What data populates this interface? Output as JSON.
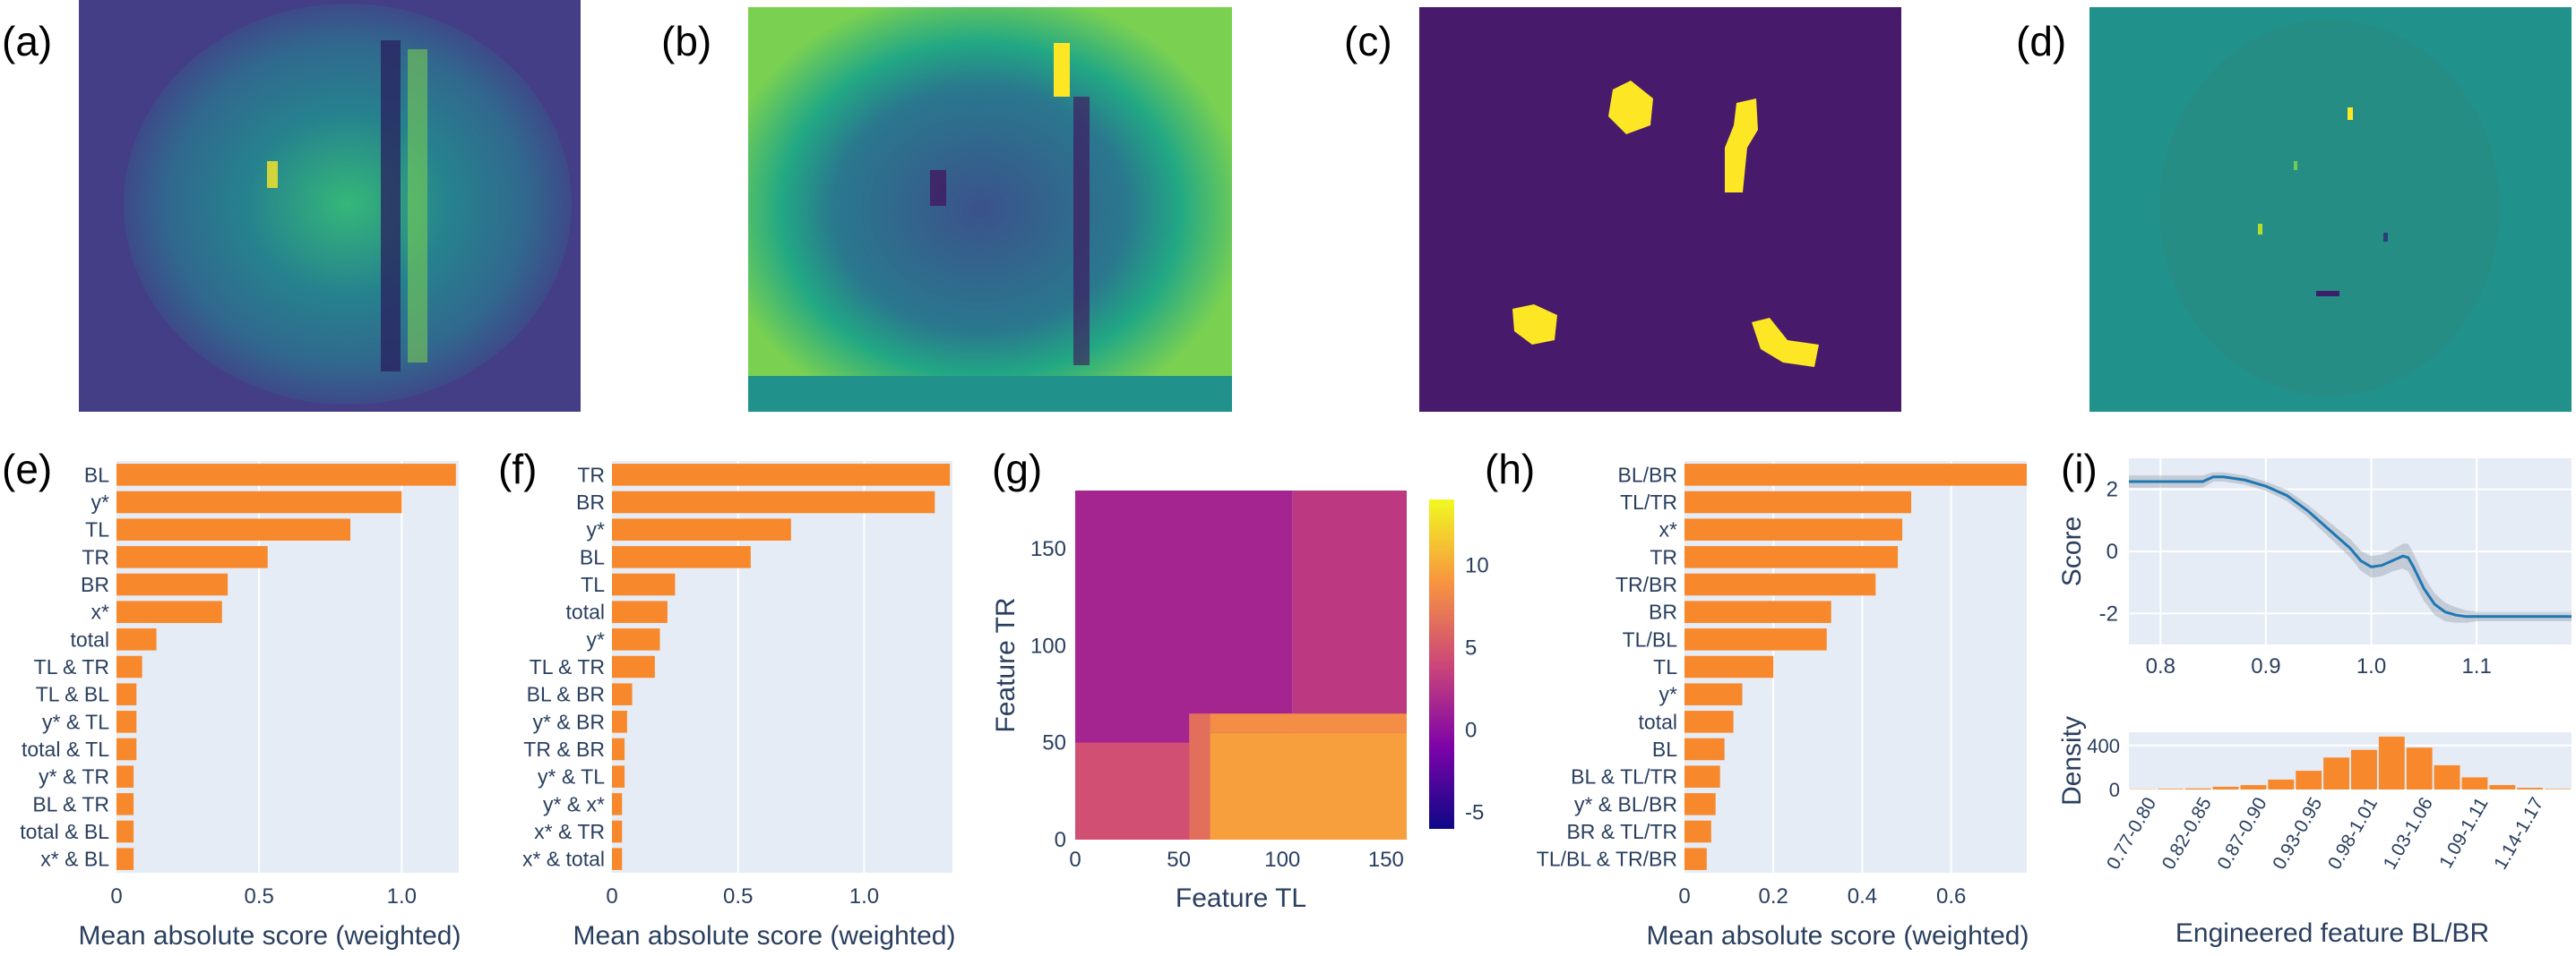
{
  "panel_labels": {
    "a": "(a)",
    "b": "(b)",
    "c": "(c)",
    "d": "(d)",
    "e": "(e)",
    "f": "(f)",
    "g": "(g)",
    "h": "(h)",
    "i": "(i)"
  },
  "colors": {
    "bar": "#f7882b",
    "plot_bg": "#e5ecf6",
    "text": "#2a3f5f",
    "line": "#1f77b4",
    "viridis_dark": "#440154",
    "viridis_mid": "#21918c",
    "viridis_bright": "#fde725",
    "heatmap_low": "#2c1e8c",
    "heatmap_high": "#f0f921"
  },
  "chart_data": [
    {
      "id": "e",
      "type": "bar",
      "orientation": "horizontal",
      "xlabel": "Mean absolute score (weighted)",
      "xlim": [
        0,
        1.2
      ],
      "xticks": [
        0,
        0.5,
        1.0
      ],
      "xtick_labels": [
        "0",
        "0.5",
        "1.0"
      ],
      "categories": [
        "BL",
        "y*",
        "TL",
        "TR",
        "BR",
        "x*",
        "total",
        "TL & TR",
        "TL & BL",
        "y* & TL",
        "total & TL",
        "y* & TR",
        "BL & TR",
        "total & BL",
        "x* & BL"
      ],
      "values": [
        1.19,
        1.0,
        0.82,
        0.53,
        0.39,
        0.37,
        0.14,
        0.09,
        0.07,
        0.07,
        0.07,
        0.06,
        0.06,
        0.06,
        0.06
      ]
    },
    {
      "id": "f",
      "type": "bar",
      "orientation": "horizontal",
      "xlabel": "Mean absolute score (weighted)",
      "xlim": [
        0,
        1.35
      ],
      "xticks": [
        0,
        0.5,
        1.0
      ],
      "xtick_labels": [
        "0",
        "0.5",
        "1.0"
      ],
      "categories": [
        "TR",
        "BR",
        "y*",
        "BL",
        "TL",
        "total",
        "y*",
        "TL & TR",
        "BL & BR",
        "y* & BR",
        "TR & BR",
        "y* & TL",
        "y* & x*",
        "x* & TR",
        "x* & total"
      ],
      "values": [
        1.34,
        1.28,
        0.71,
        0.55,
        0.25,
        0.22,
        0.19,
        0.17,
        0.08,
        0.06,
        0.05,
        0.05,
        0.04,
        0.04,
        0.04
      ]
    },
    {
      "id": "g",
      "type": "heatmap",
      "xlabel": "Feature TL",
      "ylabel": "Feature TR",
      "xlim": [
        0,
        160
      ],
      "ylim": [
        0,
        180
      ],
      "xticks": [
        0,
        50,
        100,
        150
      ],
      "yticks": [
        0,
        50,
        100,
        150
      ],
      "colorbar": {
        "min": -6,
        "max": 14,
        "ticks": [
          -5,
          0,
          5,
          10
        ]
      },
      "regions": [
        {
          "x": [
            0,
            105
          ],
          "y": [
            0,
            180
          ],
          "value": 1.5
        },
        {
          "x": [
            105,
            160
          ],
          "y": [
            50,
            180
          ],
          "value": 3.0
        },
        {
          "x": [
            0,
            55
          ],
          "y": [
            0,
            50
          ],
          "value": 4.5
        },
        {
          "x": [
            55,
            65
          ],
          "y": [
            0,
            65
          ],
          "value": 6.5
        },
        {
          "x": [
            65,
            160
          ],
          "y": [
            55,
            65
          ],
          "value": 8.5
        },
        {
          "x": [
            65,
            160
          ],
          "y": [
            0,
            55
          ],
          "value": 9.5
        }
      ]
    },
    {
      "id": "h",
      "type": "bar",
      "orientation": "horizontal",
      "xlabel": "Mean absolute score (weighted)",
      "xlim": [
        0,
        0.77
      ],
      "xticks": [
        0,
        0.2,
        0.4,
        0.6
      ],
      "xtick_labels": [
        "0",
        "0.2",
        "0.4",
        "0.6"
      ],
      "categories": [
        "BL/BR",
        "TL/TR",
        "x*",
        "TR",
        "TR/BR",
        "BR",
        "TL/BL",
        "TL",
        "y*",
        "total",
        "BL",
        "BL & TL/TR",
        "y* & BL/BR",
        "BR & TL/TR",
        "TL/BL & TR/BR"
      ],
      "values": [
        0.77,
        0.51,
        0.49,
        0.48,
        0.43,
        0.33,
        0.32,
        0.2,
        0.13,
        0.11,
        0.09,
        0.08,
        0.07,
        0.06,
        0.05
      ]
    },
    {
      "id": "i-top",
      "type": "line",
      "ylabel": "Score",
      "xlim": [
        0.77,
        1.19
      ],
      "ylim": [
        -3,
        3
      ],
      "xticks": [
        0.8,
        0.9,
        1.0,
        1.1
      ],
      "xtick_labels": [
        "0.8",
        "0.9",
        "1.0",
        "1.1"
      ],
      "yticks": [
        -2,
        0,
        2
      ],
      "x": [
        0.77,
        0.8,
        0.84,
        0.85,
        0.86,
        0.87,
        0.88,
        0.9,
        0.92,
        0.94,
        0.96,
        0.98,
        0.99,
        1.0,
        1.01,
        1.02,
        1.03,
        1.035,
        1.04,
        1.05,
        1.06,
        1.07,
        1.08,
        1.09,
        1.1,
        1.19
      ],
      "y": [
        2.25,
        2.25,
        2.25,
        2.4,
        2.4,
        2.35,
        2.3,
        2.1,
        1.8,
        1.3,
        0.7,
        0.1,
        -0.3,
        -0.5,
        -0.45,
        -0.3,
        -0.15,
        -0.2,
        -0.5,
        -1.2,
        -1.7,
        -1.95,
        -2.05,
        -2.1,
        -2.1,
        -2.1
      ],
      "band": [
        0.2,
        0.2,
        0.2,
        0.15,
        0.15,
        0.15,
        0.15,
        0.15,
        0.18,
        0.2,
        0.25,
        0.3,
        0.32,
        0.35,
        0.35,
        0.35,
        0.4,
        0.45,
        0.45,
        0.4,
        0.35,
        0.3,
        0.25,
        0.2,
        0.15,
        0.15
      ]
    },
    {
      "id": "i-bottom",
      "type": "bar",
      "xlabel": "Engineered feature BL/BR",
      "ylabel": "Density",
      "ylim": [
        0,
        520
      ],
      "yticks": [
        0,
        400
      ],
      "tick_labels": [
        "0.77-0.80",
        "0.82-0.85",
        "0.87-0.90",
        "0.93-0.95",
        "0.98-1.01",
        "1.03-1.06",
        "1.09-1.11",
        "1.14-1.17"
      ],
      "values": [
        3,
        6,
        10,
        25,
        40,
        90,
        170,
        290,
        360,
        480,
        380,
        220,
        110,
        40,
        15,
        5
      ]
    }
  ]
}
